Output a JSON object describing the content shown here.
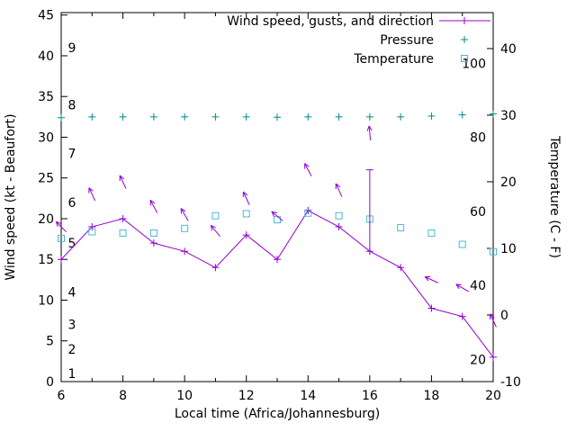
{
  "chart_data": {
    "type": "line",
    "title": "",
    "xlabel": "Local time (Africa/Johannesburg)",
    "ylabel_left": "Wind speed (kt - Beaufort)",
    "ylabel_right": "Temperature (C - F)",
    "x_range": [
      6,
      20
    ],
    "x_major_ticks": [
      6,
      8,
      10,
      12,
      14,
      16,
      18,
      20
    ],
    "x_minor_step": 1,
    "left_range": [
      0,
      45.3
    ],
    "left_ticks": [
      0,
      5,
      10,
      15,
      20,
      25,
      30,
      35,
      40,
      45
    ],
    "right_range": [
      -10,
      45.4
    ],
    "right_ticks": [
      -10,
      0,
      10,
      20,
      30,
      40
    ],
    "beaufort_labels": [
      [
        1,
        1
      ],
      [
        2,
        4
      ],
      [
        3,
        7
      ],
      [
        4,
        11
      ],
      [
        5,
        17
      ],
      [
        6,
        22
      ],
      [
        7,
        28
      ],
      [
        8,
        34
      ],
      [
        9,
        41
      ]
    ],
    "fahrenheit_labels": [
      20,
      40,
      60,
      80,
      100
    ],
    "x": [
      6,
      7,
      8,
      9,
      10,
      11,
      12,
      13,
      14,
      15,
      16,
      17,
      18,
      19,
      20
    ],
    "series": [
      {
        "name": "Wind speed, gusts, and direction",
        "axis": "left",
        "color": "#9400d3",
        "marker": "plus",
        "style": "linespoints",
        "values": [
          15,
          19,
          20,
          17,
          16,
          14,
          18,
          15,
          21,
          19,
          16,
          14,
          9,
          8,
          3
        ]
      },
      {
        "name": "Pressure",
        "axis": "left",
        "color": "#008b8b",
        "marker": "plus",
        "style": "points",
        "note": "no visible numeric scale; plotted flat near 32.5 on left-axis pixels",
        "values": [
          32.4,
          32.5,
          32.5,
          32.5,
          32.5,
          32.5,
          32.5,
          32.45,
          32.5,
          32.5,
          32.5,
          32.5,
          32.6,
          32.75,
          32.85
        ]
      },
      {
        "name": "Temperature",
        "axis": "right",
        "color": "#4db8d4",
        "marker": "square",
        "style": "points",
        "values": [
          11.5,
          12.5,
          12.3,
          12.3,
          13.0,
          14.9,
          15.2,
          14.3,
          15.3,
          14.9,
          14.4,
          13.1,
          12.3,
          10.6,
          9.5
        ]
      }
    ],
    "gust_bars": [
      {
        "x": 16,
        "from": 16,
        "to": 26
      }
    ],
    "wind_arrows": [
      {
        "x": 6,
        "y": 19,
        "angle": 135
      },
      {
        "x": 7,
        "y": 23,
        "angle": 115
      },
      {
        "x": 8,
        "y": 24.5,
        "angle": 115
      },
      {
        "x": 9,
        "y": 21.5,
        "angle": 118
      },
      {
        "x": 10,
        "y": 20.5,
        "angle": 120
      },
      {
        "x": 11,
        "y": 18.5,
        "angle": 130
      },
      {
        "x": 12,
        "y": 22.5,
        "angle": 115
      },
      {
        "x": 13,
        "y": 20.3,
        "angle": 140
      },
      {
        "x": 14,
        "y": 26,
        "angle": 118
      },
      {
        "x": 15,
        "y": 23.5,
        "angle": 115
      },
      {
        "x": 16,
        "y": 30.5,
        "angle": 95
      },
      {
        "x": 18,
        "y": 12.5,
        "angle": 155
      },
      {
        "x": 19,
        "y": 11.5,
        "angle": 150
      },
      {
        "x": 20,
        "y": 7.5,
        "angle": 115
      }
    ],
    "legend_position": "top-right",
    "grid": false
  },
  "colors": {
    "axis": "#000000",
    "text": "#000000",
    "background": "#ffffff"
  }
}
